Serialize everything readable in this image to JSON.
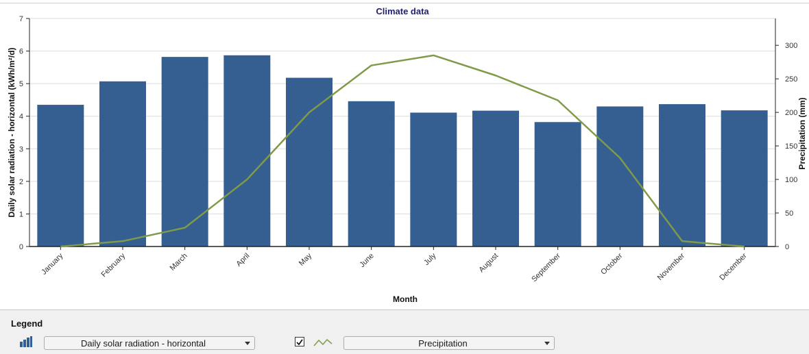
{
  "colors": {
    "bars": "#365f91",
    "line": "#7f9a48",
    "grid": "#dcdcdc",
    "axis": "#222222",
    "title": "#1f1f6b"
  },
  "legend": {
    "title": "Legend",
    "bar_icon": "bar-chart-icon",
    "line_icon": "line-chart-icon",
    "bar_series_select": "Daily solar radiation - horizontal",
    "line_series_checked": true,
    "line_series_select": "Precipitation"
  },
  "chart_data": {
    "type": "bar",
    "title": "Climate data",
    "xlabel": "Month",
    "ylabel": "Daily solar radiation - horizontal (kWh/m²/d)",
    "y2label": "Precipitation (mm)",
    "categories": [
      "January",
      "February",
      "March",
      "April",
      "May",
      "June",
      "July",
      "August",
      "September",
      "October",
      "November",
      "December"
    ],
    "ylim": [
      0,
      7
    ],
    "yticks": [
      0,
      1,
      2,
      3,
      4,
      5,
      6,
      7
    ],
    "y2lim": [
      0,
      340
    ],
    "y2ticks": [
      0,
      50,
      100,
      150,
      200,
      250,
      300
    ],
    "grid": true,
    "series": [
      {
        "type": "bar",
        "axis": "left",
        "values": [
          4.35,
          5.07,
          5.82,
          5.87,
          5.18,
          4.46,
          4.11,
          4.17,
          3.82,
          4.3,
          4.37,
          4.18
        ]
      },
      {
        "type": "line",
        "axis": "right",
        "values": [
          0,
          8,
          28,
          100,
          200,
          270,
          285,
          255,
          218,
          132,
          8,
          0
        ]
      }
    ]
  }
}
